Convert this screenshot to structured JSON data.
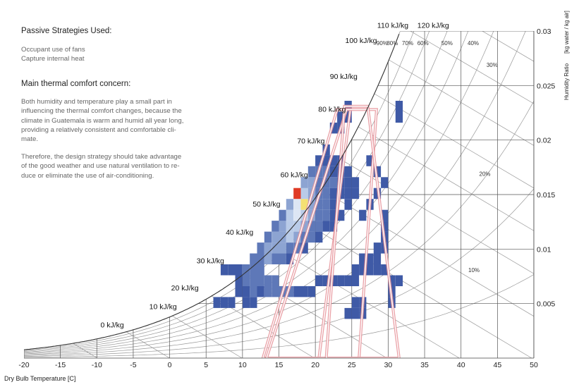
{
  "panel": {
    "strategies_heading": "Passive Strategies Used:",
    "strategies": [
      "Occupant use of fans",
      "Capture internal heat"
    ],
    "concern_heading": "Main thermal comfort concern:",
    "concern_text": [
      "Both humidity and temperature play a small part in",
      "influencing the thermal comfort changes, because the",
      "climate in Guatemala is warm and humid all year long,",
      "providing a relatively consistent and comfortable cli-",
      "mate."
    ],
    "strategy_text": [
      "Therefore, the design strategy should take advantage",
      "of the good weather and use natural ventilation to re-",
      "duce or eliminate the use of air-conditioning."
    ]
  },
  "chart_data": {
    "type": "heatmap",
    "xlabel": "Dry Bulb Temperature [C]",
    "ylabel": "Humidity Ratio",
    "ylabel_unit": "[kg water / kg air]",
    "xlim": [
      -20,
      50
    ],
    "ylim": [
      0,
      0.03
    ],
    "x_ticks": [
      "-20",
      "-15",
      "-10",
      "-5",
      "0",
      "5",
      "10",
      "15",
      "20",
      "25",
      "30",
      "35",
      "40",
      "45",
      "50"
    ],
    "y_ticks": [
      {
        "v": 0.005,
        "label": "0.005"
      },
      {
        "v": 0.01,
        "label": "0.01"
      },
      {
        "v": 0.015,
        "label": "0.015"
      },
      {
        "v": 0.02,
        "label": "0.02"
      },
      {
        "v": 0.025,
        "label": "0.025"
      },
      {
        "v": 0.03,
        "label": "0.03"
      }
    ],
    "rh_labels": [
      "90%",
      "80%",
      "70%",
      "60%",
      "50%",
      "40%",
      "30%",
      "20%",
      "10%"
    ],
    "rh_label_positions": [
      [
        28.4,
        0.0287
      ],
      [
        29.8,
        0.0287
      ],
      [
        31.9,
        0.0287
      ],
      [
        34.0,
        0.0287
      ],
      [
        37.3,
        0.0287
      ],
      [
        40.9,
        0.0287
      ],
      [
        43.5,
        0.0267
      ],
      [
        42.5,
        0.0167
      ],
      [
        41.0,
        0.0079
      ]
    ],
    "enthalpy_labels": [
      "0 kJ/kg",
      "10 kJ/kg",
      "20 kJ/kg",
      "30 kJ/kg",
      "40 kJ/kg",
      "50 kJ/kg",
      "60 kJ/kg",
      "70 kJ/kg",
      "80 kJ/kg",
      "90 kJ/kg",
      "100 kJ/kg",
      "110 kJ/kg",
      "120 kJ/kg"
    ],
    "enthalpy_label_positions": [
      [
        -9.5,
        0.0028
      ],
      [
        -2.8,
        0.0045
      ],
      [
        0.2,
        0.0062
      ],
      [
        3.7,
        0.0087
      ],
      [
        7.7,
        0.0113
      ],
      [
        11.4,
        0.0139
      ],
      [
        15.2,
        0.0166
      ],
      [
        17.5,
        0.0197
      ],
      [
        20.4,
        0.0226
      ],
      [
        22.0,
        0.0256
      ],
      [
        24.1,
        0.0289
      ],
      [
        28.5,
        0.0303
      ],
      [
        34.0,
        0.0303
      ]
    ],
    "comfort_zones": [
      [
        [
          12.8,
          0
        ],
        [
          20.5,
          0
        ],
        [
          24.8,
          0.0228
        ],
        [
          23.0,
          0.0228
        ]
      ],
      [
        [
          13.3,
          0
        ],
        [
          26.0,
          0
        ],
        [
          28.4,
          0.0228
        ],
        [
          24.3,
          0.0228
        ]
      ],
      [
        [
          21.5,
          0
        ],
        [
          31.5,
          0
        ],
        [
          27.2,
          0.0231
        ],
        [
          24.0,
          0.0231
        ]
      ]
    ],
    "heatmap_bins": {
      "x_bin": 1.0,
      "y_bin": 0.001,
      "cells": [
        [
          6,
          0.0046,
          1
        ],
        [
          7,
          0.0046,
          1
        ],
        [
          8,
          0.0046,
          1
        ],
        [
          9,
          0.0056,
          1
        ],
        [
          10,
          0.0056,
          1
        ],
        [
          11,
          0.0046,
          1
        ],
        [
          10,
          0.0046,
          1
        ],
        [
          11,
          0.0056,
          2
        ],
        [
          12,
          0.0056,
          1
        ],
        [
          7,
          0.0076,
          1
        ],
        [
          8,
          0.0076,
          1
        ],
        [
          9,
          0.0076,
          1
        ],
        [
          10,
          0.0076,
          2
        ],
        [
          11,
          0.0076,
          2
        ],
        [
          12,
          0.0076,
          2
        ],
        [
          9,
          0.0066,
          1
        ],
        [
          10,
          0.0066,
          2
        ],
        [
          11,
          0.0066,
          2
        ],
        [
          12,
          0.0066,
          2
        ],
        [
          13,
          0.0066,
          2
        ],
        [
          14,
          0.0066,
          2
        ],
        [
          11,
          0.0086,
          2
        ],
        [
          12,
          0.0086,
          2
        ],
        [
          13,
          0.0086,
          3
        ],
        [
          14,
          0.0086,
          2
        ],
        [
          15,
          0.0086,
          2
        ],
        [
          16,
          0.0086,
          1
        ],
        [
          12,
          0.0096,
          2
        ],
        [
          13,
          0.0096,
          3
        ],
        [
          14,
          0.0096,
          3
        ],
        [
          15,
          0.0096,
          3
        ],
        [
          16,
          0.0096,
          2
        ],
        [
          17,
          0.0096,
          2
        ],
        [
          18,
          0.0096,
          1
        ],
        [
          13,
          0.0106,
          2
        ],
        [
          14,
          0.0106,
          3
        ],
        [
          15,
          0.0106,
          3
        ],
        [
          16,
          0.0106,
          4
        ],
        [
          17,
          0.0106,
          3
        ],
        [
          18,
          0.0106,
          2
        ],
        [
          19,
          0.0106,
          2
        ],
        [
          20,
          0.0106,
          1
        ],
        [
          14,
          0.0116,
          2
        ],
        [
          15,
          0.0116,
          3
        ],
        [
          16,
          0.0116,
          4
        ],
        [
          17,
          0.0116,
          4
        ],
        [
          18,
          0.0116,
          3
        ],
        [
          19,
          0.0116,
          2
        ],
        [
          20,
          0.0116,
          2
        ],
        [
          21,
          0.0116,
          1
        ],
        [
          22,
          0.0116,
          1
        ],
        [
          15,
          0.0126,
          2
        ],
        [
          16,
          0.0126,
          4
        ],
        [
          17,
          0.0126,
          5
        ],
        [
          18,
          0.0126,
          4
        ],
        [
          19,
          0.0126,
          3
        ],
        [
          20,
          0.0126,
          2
        ],
        [
          21,
          0.0126,
          2
        ],
        [
          22,
          0.0126,
          1
        ],
        [
          23,
          0.0126,
          1
        ],
        [
          16,
          0.0136,
          3
        ],
        [
          17,
          0.0136,
          5
        ],
        [
          18,
          0.0136,
          6
        ],
        [
          19,
          0.0136,
          3
        ],
        [
          20,
          0.0136,
          2
        ],
        [
          21,
          0.0136,
          2
        ],
        [
          22,
          0.0136,
          1
        ],
        [
          24,
          0.0136,
          1
        ],
        [
          17,
          0.0146,
          7
        ],
        [
          18,
          0.0146,
          4
        ],
        [
          19,
          0.0146,
          3
        ],
        [
          20,
          0.0146,
          2
        ],
        [
          21,
          0.0146,
          2
        ],
        [
          22,
          0.0146,
          1
        ],
        [
          23,
          0.0146,
          1
        ],
        [
          24,
          0.0146,
          1
        ],
        [
          25,
          0.0146,
          1
        ],
        [
          18,
          0.0156,
          3
        ],
        [
          19,
          0.0156,
          3
        ],
        [
          20,
          0.0156,
          2
        ],
        [
          21,
          0.0156,
          2
        ],
        [
          22,
          0.0156,
          2
        ],
        [
          23,
          0.0156,
          1
        ],
        [
          24,
          0.0156,
          1
        ],
        [
          25,
          0.0156,
          1
        ],
        [
          19,
          0.0166,
          2
        ],
        [
          20,
          0.0166,
          2
        ],
        [
          21,
          0.0166,
          2
        ],
        [
          22,
          0.0166,
          1
        ],
        [
          23,
          0.0166,
          1
        ],
        [
          24,
          0.0166,
          1
        ],
        [
          20,
          0.0176,
          1
        ],
        [
          21,
          0.0176,
          1
        ],
        [
          22,
          0.0176,
          1
        ],
        [
          23,
          0.0176,
          1
        ],
        [
          21,
          0.0186,
          1
        ],
        [
          22,
          0.0206,
          1
        ],
        [
          23,
          0.0206,
          1
        ],
        [
          23,
          0.0216,
          1
        ],
        [
          24,
          0.0216,
          1
        ],
        [
          24,
          0.0226,
          1
        ],
        [
          31,
          0.0226,
          1
        ],
        [
          31,
          0.0216,
          1
        ],
        [
          13,
          0.0056,
          2
        ],
        [
          14,
          0.0056,
          2
        ],
        [
          15,
          0.0056,
          2
        ],
        [
          16,
          0.0056,
          2
        ],
        [
          17,
          0.0056,
          1
        ],
        [
          18,
          0.0056,
          1
        ],
        [
          19,
          0.0056,
          1
        ],
        [
          20,
          0.0066,
          1
        ],
        [
          21,
          0.0066,
          1
        ],
        [
          22,
          0.0066,
          1
        ],
        [
          23,
          0.0066,
          1
        ],
        [
          24,
          0.0066,
          1
        ],
        [
          25,
          0.0066,
          1
        ],
        [
          25,
          0.0076,
          1
        ],
        [
          26,
          0.0076,
          1
        ],
        [
          27,
          0.0076,
          1
        ],
        [
          28,
          0.0076,
          1
        ],
        [
          29,
          0.0076,
          1
        ],
        [
          30,
          0.0066,
          1
        ],
        [
          31,
          0.0066,
          1
        ],
        [
          30,
          0.0056,
          1
        ],
        [
          30,
          0.0046,
          1
        ],
        [
          26,
          0.0086,
          1
        ],
        [
          27,
          0.0086,
          1
        ],
        [
          28,
          0.0086,
          1
        ],
        [
          28,
          0.0096,
          1
        ],
        [
          29,
          0.0096,
          1
        ],
        [
          29,
          0.0106,
          1
        ],
        [
          29,
          0.0116,
          1
        ],
        [
          29,
          0.0126,
          1
        ],
        [
          26,
          0.0126,
          1
        ],
        [
          27,
          0.0136,
          1
        ],
        [
          28,
          0.0146,
          1
        ],
        [
          29,
          0.0156,
          1
        ],
        [
          28,
          0.0166,
          1
        ],
        [
          27,
          0.0176,
          1
        ],
        [
          24,
          0.0036,
          1
        ],
        [
          25,
          0.0036,
          1
        ],
        [
          26,
          0.0036,
          1
        ],
        [
          25,
          0.0046,
          1
        ],
        [
          26,
          0.0046,
          1
        ]
      ]
    },
    "colors": {
      "grid": "#999999",
      "curve": "#333333",
      "comfort": "#e8989e",
      "heat_scale": [
        "#3f5aa6",
        "#5e78b8",
        "#8da4d2",
        "#b9cbe8",
        "#dde6f4",
        "#f4e072",
        "#e03a25"
      ]
    }
  }
}
